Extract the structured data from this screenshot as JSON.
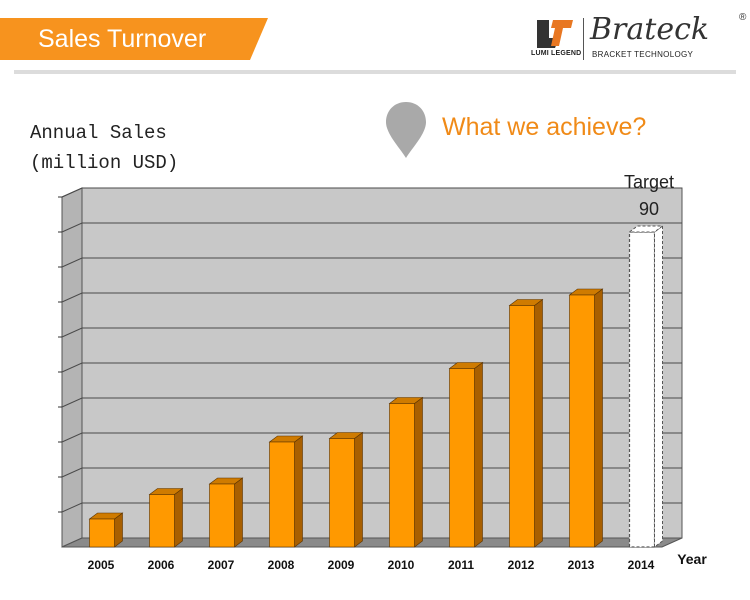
{
  "header": {
    "title": "Sales Turnover",
    "accent_color": "#f7931e",
    "brand": {
      "logo_icon": "lumi-legend-logo-icon",
      "sublabel": "LUMI LEGEND",
      "name": "Brateck",
      "tagline": "BRACKET TECHNOLOGY",
      "registered_mark": "®"
    }
  },
  "tagline": {
    "icon": "location-pin-icon",
    "text": "What we achieve?"
  },
  "chart_data": {
    "type": "bar",
    "ylabel_lines": [
      "Annual Sales",
      "(million USD)"
    ],
    "xlabel": "Year",
    "categories": [
      "2005",
      "2006",
      "2007",
      "2008",
      "2009",
      "2010",
      "2011",
      "2012",
      "2013",
      "2014"
    ],
    "values": [
      8,
      15,
      18,
      30,
      31,
      41,
      51,
      69,
      72,
      90
    ],
    "ylim": [
      0,
      100
    ],
    "grid": true,
    "target": {
      "category": "2014",
      "label": "Target",
      "value_label": "90",
      "style": "dashed-white"
    },
    "colors": {
      "bar_front": "#ff9900",
      "bar_side": "#a85f00",
      "bar_top": "#cf7b00",
      "plot_back": "#c8c8c8",
      "plot_floor": "#8a8a8a"
    }
  }
}
